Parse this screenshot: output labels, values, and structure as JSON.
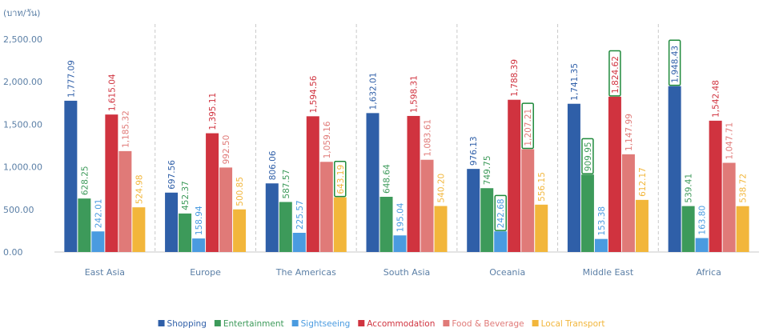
{
  "chart_data": {
    "type": "bar",
    "unit_label": "(บาท/วัน)",
    "title": "",
    "xlabel": "",
    "ylabel": "",
    "ylim": [
      0,
      2500
    ],
    "yticks": [
      "0.00",
      "500.00",
      "1,000.00",
      "1,500.00",
      "2,000.00",
      "2,500.00"
    ],
    "grid": "vertical-dashed",
    "legend_position": "bottom",
    "categories": [
      "East Asia",
      "Europe",
      "The Americas",
      "South Asia",
      "Oceania",
      "Middle East",
      "Africa"
    ],
    "series": [
      {
        "name": "Shopping",
        "color": "#2f5fa8",
        "values": [
          1777.09,
          697.56,
          806.06,
          1632.01,
          976.13,
          1741.35,
          1948.43
        ],
        "labels": [
          "1,777.09",
          "697.56",
          "806.06",
          "1,632.01",
          "976.13",
          "1,741.35",
          "1,948.43"
        ]
      },
      {
        "name": "Entertainment",
        "color": "#3d9a5a",
        "values": [
          628.25,
          452.37,
          587.57,
          648.64,
          749.75,
          909.95,
          539.41
        ],
        "labels": [
          "628.25",
          "452.37",
          "587.57",
          "648.64",
          "749.75",
          "909.95",
          "539.41"
        ]
      },
      {
        "name": "Sightseeing",
        "color": "#4a9be0",
        "values": [
          242.01,
          158.94,
          225.57,
          195.04,
          242.68,
          153.38,
          163.8
        ],
        "labels": [
          "242.01",
          "158.94",
          "225.57",
          "195.04",
          "242.68",
          "153.38",
          "163.80"
        ]
      },
      {
        "name": "Accommodation",
        "color": "#d0333f",
        "values": [
          1615.04,
          1395.11,
          1594.56,
          1598.31,
          1788.39,
          1824.62,
          1542.48
        ],
        "labels": [
          "1,615.04",
          "1,395.11",
          "1,594.56",
          "1,598.31",
          "1,788.39",
          "1,824.62",
          "1,542.48"
        ]
      },
      {
        "name": "Food & Beverage",
        "color": "#e07a78",
        "values": [
          1185.32,
          992.5,
          1059.16,
          1083.61,
          1207.21,
          1147.99,
          1047.71
        ],
        "labels": [
          "1,185.32",
          "992.50",
          "1,059.16",
          "1,083.61",
          "1,207.21",
          "1,147.99",
          "1,047.71"
        ]
      },
      {
        "name": "Local Transport",
        "color": "#f2b63b",
        "values": [
          524.98,
          500.85,
          643.19,
          540.2,
          556.15,
          612.17,
          538.72
        ],
        "labels": [
          "524.98",
          "500.85",
          "643.19",
          "540.20",
          "556.15",
          "612.17",
          "538.72"
        ]
      }
    ],
    "highlighted": [
      {
        "category": "The Americas",
        "series": "Local Transport"
      },
      {
        "category": "Oceania",
        "series": "Sightseeing"
      },
      {
        "category": "Oceania",
        "series": "Food & Beverage"
      },
      {
        "category": "Middle East",
        "series": "Entertainment"
      },
      {
        "category": "Middle East",
        "series": "Accommodation"
      },
      {
        "category": "Africa",
        "series": "Shopping"
      }
    ],
    "highlight_color": "#1f8a3b"
  }
}
